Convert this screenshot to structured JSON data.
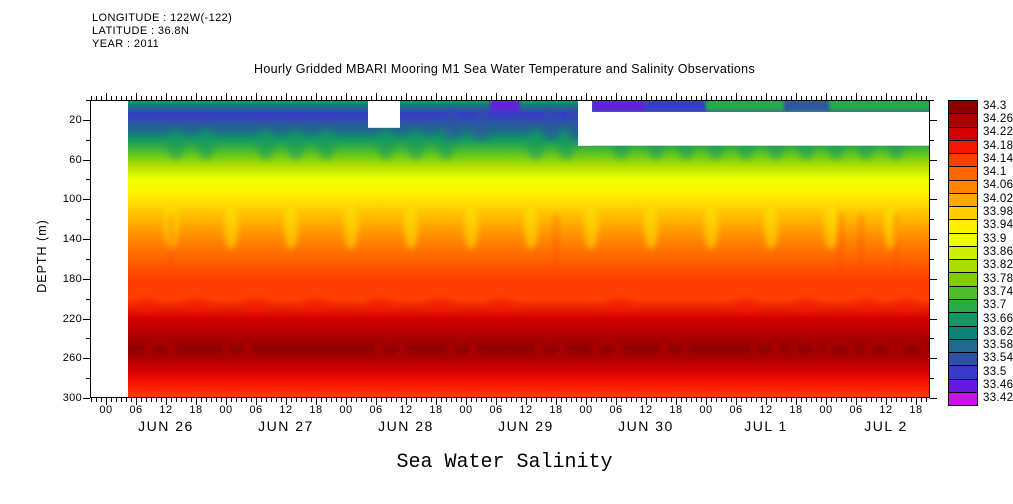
{
  "header": {
    "info_lines": [
      "LONGITUDE : 122W(-122)",
      "LATITUDE : 36.8N",
      "YEAR : 2011"
    ],
    "title": "Hourly Gridded MBARI Mooring M1 Sea Water Temperature and Salinity Observations"
  },
  "footer": {
    "xlabel": "Sea Water Salinity"
  },
  "chart_data": {
    "type": "heatmap",
    "title": "Hourly Gridded MBARI Mooring M1 Sea Water Temperature and Salinity Observations",
    "variable": "Sea Water Salinity",
    "x_axis": {
      "days": [
        "JUN 26",
        "JUN 27",
        "JUN 28",
        "JUN 29",
        "JUN 30",
        "JUL 1",
        "JUL 2"
      ],
      "hour_tick_labels": [
        "00",
        "06",
        "12",
        "18"
      ],
      "start_hour": -3.2,
      "end_hour": 164.8,
      "minor_tick_hours": 1,
      "major_tick_hours": 6
    },
    "y_axis": {
      "label": "DEPTH (m)",
      "ticks": [
        "20",
        "60",
        "100",
        "140",
        "180",
        "220",
        "260",
        "300"
      ],
      "min": 0,
      "max": 300,
      "minor_step": 20
    },
    "colorbar": {
      "levels": [
        "34.3",
        "34.26",
        "34.22",
        "34.18",
        "34.14",
        "34.1",
        "34.06",
        "34.02",
        "33.98",
        "33.94",
        "33.9",
        "33.86",
        "33.82",
        "33.78",
        "33.74",
        "33.7",
        "33.66",
        "33.62",
        "33.58",
        "33.54",
        "33.5",
        "33.46",
        "33.42"
      ],
      "colors": [
        "#8f0000",
        "#ad0000",
        "#d40000",
        "#f61500",
        "#ff3f00",
        "#ff6400",
        "#ff8700",
        "#ffaa00",
        "#ffcd00",
        "#fff000",
        "#eeff00",
        "#ccee00",
        "#aadd00",
        "#7fcf00",
        "#4fbe2a",
        "#2aab48",
        "#129763",
        "#0c8377",
        "#20698c",
        "#2d53a4",
        "#3939cc",
        "#661ae0",
        "#c414e0"
      ],
      "step": 0.04
    },
    "depth_profile": [
      [
        0,
        33.7
      ],
      [
        4,
        33.62
      ],
      [
        8,
        33.56
      ],
      [
        14,
        33.5
      ],
      [
        22,
        33.52
      ],
      [
        30,
        33.58
      ],
      [
        40,
        33.66
      ],
      [
        52,
        33.74
      ],
      [
        65,
        33.82
      ],
      [
        80,
        33.9
      ],
      [
        95,
        33.94
      ],
      [
        110,
        33.98
      ],
      [
        125,
        34.0
      ],
      [
        140,
        34.04
      ],
      [
        160,
        34.08
      ],
      [
        180,
        34.12
      ],
      [
        200,
        34.16
      ],
      [
        220,
        34.2
      ],
      [
        238,
        34.24
      ],
      [
        250,
        34.28
      ],
      [
        260,
        34.24
      ],
      [
        272,
        34.2
      ],
      [
        285,
        34.17
      ],
      [
        300,
        34.16
      ]
    ],
    "missing_data": [
      {
        "from_hour": -3.2,
        "to_hour": 4.4,
        "from_depth": 0,
        "to_depth": 300
      },
      {
        "from_hour": 52.4,
        "to_hour": 58.8,
        "from_depth": 0,
        "to_depth": 28
      },
      {
        "from_hour": 94.4,
        "to_hour": 97.2,
        "from_depth": 0,
        "to_depth": 46
      },
      {
        "from_hour": 94.4,
        "to_hour": 164.8,
        "from_depth": 12,
        "to_depth": 46
      }
    ],
    "surface_patches": [
      {
        "from_hour": 76.8,
        "to_hour": 82.8,
        "salinity": 33.46
      },
      {
        "from_hour": 97.2,
        "to_hour": 108.0,
        "salinity": 33.44
      },
      {
        "from_hour": 108.0,
        "to_hour": 120.0,
        "salinity": 33.5
      },
      {
        "from_hour": 120.0,
        "to_hour": 164.8,
        "salinity": 33.68
      },
      {
        "from_hour": 135.6,
        "to_hour": 144.6,
        "salinity": 33.54
      }
    ],
    "features": {
      "deep_maxima_depth": 250,
      "deep_maxima_salinity": 34.3,
      "deep_maxima_hours": [
        10.8,
        26.2,
        56.8,
        71.2,
        88.8,
        100.2,
        113.8,
        131.8,
        139.8,
        146.8,
        154.8,
        161.2
      ],
      "teal_plumes_hours": [
        14,
        20,
        32,
        38,
        44,
        56,
        62,
        68,
        86,
        92,
        103,
        110,
        116,
        122,
        128,
        134,
        140,
        146,
        152,
        158
      ],
      "blue_columns_hours": [
        69,
        75,
        89,
        94
      ],
      "yellow_plumes_hours": [
        13,
        25,
        37,
        49,
        61,
        73,
        85,
        97,
        109,
        121,
        133,
        145,
        157
      ],
      "red_patches_hours": [
        8,
        18,
        30,
        42,
        55,
        67,
        79,
        103,
        128,
        140,
        152,
        160
      ],
      "dark_streaks_hours": [
        13,
        90,
        147,
        151,
        158
      ]
    }
  },
  "colors": {
    "background": "#ffffff",
    "frame": "#000000",
    "missing": "#ffffff"
  }
}
